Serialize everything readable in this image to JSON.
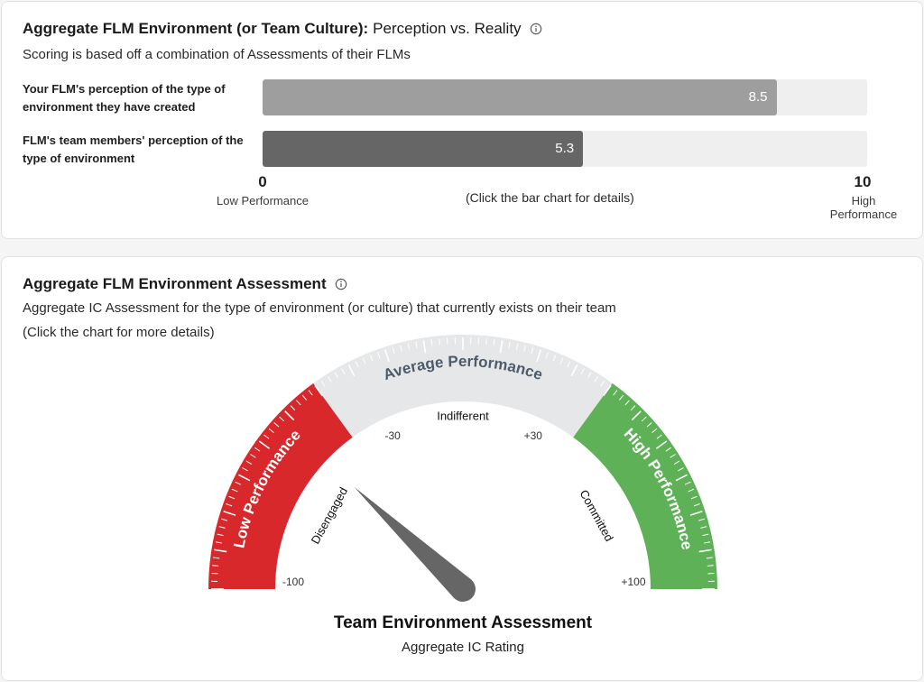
{
  "perception": {
    "title_bold": "Aggregate FLM Environment (or Team Culture):",
    "title_light": "Perception vs. Reality",
    "subtitle": "Scoring is based off a combination of Assessments of their FLMs",
    "bars": [
      {
        "label": "Your FLM's perception of the type of environment they have created",
        "value": 8.5,
        "value_text": "8.5",
        "color": "#9e9e9e"
      },
      {
        "label": "FLM's team members' perception of the type of environment",
        "value": 5.3,
        "value_text": "5.3",
        "color": "#666666"
      }
    ],
    "scale_max": 10,
    "axis": {
      "min_label": "0",
      "min_caption": "Low Performance",
      "max_label": "10",
      "max_caption": "High Performance",
      "hint": "(Click the bar chart for details)"
    }
  },
  "assessment": {
    "title": "Aggregate FLM Environment Assessment",
    "subtitle": "Aggregate IC Assessment for the type of environment (or culture) that currently exists on their team",
    "hint": "(Click the chart for more details)",
    "gauge": {
      "min": -100,
      "max": 100,
      "value": -52,
      "zones": [
        {
          "name": "Low Performance",
          "from": -100,
          "to": -40,
          "color": "#d9282b"
        },
        {
          "name": "Average Performance",
          "from": -40,
          "to": 40,
          "color": "#e6e7e8"
        },
        {
          "name": "High Performance",
          "from": 40,
          "to": 100,
          "color": "#5fb157"
        }
      ],
      "tick_labels": [
        {
          "value": -100,
          "text": "-100"
        },
        {
          "value": -30,
          "text": "-30"
        },
        {
          "value": 30,
          "text": "+30"
        },
        {
          "value": 100,
          "text": "+100"
        }
      ],
      "inner_labels": [
        {
          "value": -68,
          "text": "Disengaged"
        },
        {
          "value": 0,
          "text": "Indifferent"
        },
        {
          "value": 68,
          "text": "Committed"
        }
      ],
      "needle_color": "#666666",
      "zone_text_color": "#ffffff",
      "average_text_color": "#4d5b6b"
    },
    "gauge_title": "Team Environment Assessment",
    "gauge_subtitle": "Aggregate IC Rating"
  }
}
